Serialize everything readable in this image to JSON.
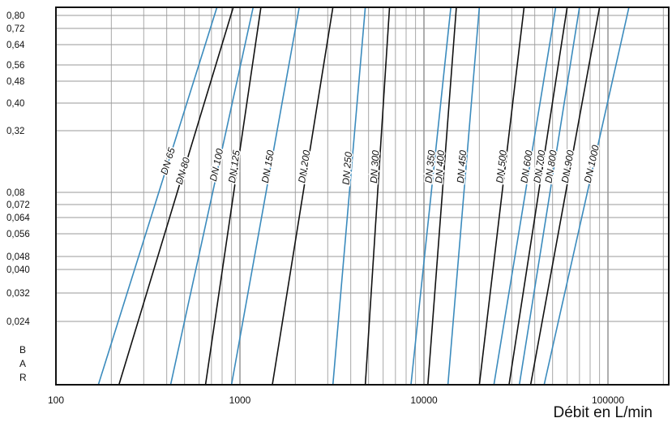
{
  "chart_data": {
    "type": "line",
    "x_scale": "log",
    "x_range": [
      100,
      160000
    ],
    "x_tick_labels": [
      "100",
      "1000",
      "10000",
      "100000"
    ],
    "x_tick_values": [
      100,
      1000,
      10000,
      100000
    ],
    "y_tick_labels": [
      "0,80",
      "0,72",
      "0,64",
      "0,56",
      "0,48",
      "0,40",
      "0,32",
      "0,08",
      "0,072",
      "0,064",
      "0,056",
      "0,048",
      "0,040",
      "0,032",
      "0,024"
    ],
    "y_label_letters": [
      "B",
      "A",
      "R"
    ],
    "xlabel": "Débit en L/min",
    "grid": true,
    "series": [
      {
        "name": "DN 65",
        "color": "#3b8bbd",
        "flow_at_bottom": 170,
        "flow_at_top": 750
      },
      {
        "name": "DN 80",
        "color": "#111111",
        "flow_at_bottom": 220,
        "flow_at_top": 920
      },
      {
        "name": "DN 100",
        "color": "#3b8bbd",
        "flow_at_bottom": 420,
        "flow_at_top": 1180
      },
      {
        "name": "DN 125",
        "color": "#111111",
        "flow_at_bottom": 650,
        "flow_at_top": 1300
      },
      {
        "name": "DN 150",
        "color": "#3b8bbd",
        "flow_at_bottom": 900,
        "flow_at_top": 2100
      },
      {
        "name": "DN 200",
        "color": "#111111",
        "flow_at_bottom": 1500,
        "flow_at_top": 3200
      },
      {
        "name": "DN 250",
        "color": "#3b8bbd",
        "flow_at_bottom": 3200,
        "flow_at_top": 4800
      },
      {
        "name": "DN 300",
        "color": "#111111",
        "flow_at_bottom": 4800,
        "flow_at_top": 6500
      },
      {
        "name": "DN 350",
        "color": "#3b8bbd",
        "flow_at_bottom": 8500,
        "flow_at_top": 14000
      },
      {
        "name": "DN 400",
        "color": "#111111",
        "flow_at_bottom": 10500,
        "flow_at_top": 15000
      },
      {
        "name": "DN 450",
        "color": "#3b8bbd",
        "flow_at_bottom": 13500,
        "flow_at_top": 20000
      },
      {
        "name": "DN 500",
        "color": "#111111",
        "flow_at_bottom": 20000,
        "flow_at_top": 35000
      },
      {
        "name": "DN 600",
        "color": "#3b8bbd",
        "flow_at_bottom": 24000,
        "flow_at_top": 52000
      },
      {
        "name": "DN 700",
        "color": "#111111",
        "flow_at_bottom": 29000,
        "flow_at_top": 60000
      },
      {
        "name": "DN 800",
        "color": "#3b8bbd",
        "flow_at_bottom": 33000,
        "flow_at_top": 70000
      },
      {
        "name": "DN 900",
        "color": "#111111",
        "flow_at_bottom": 38000,
        "flow_at_top": 90000
      },
      {
        "name": "DN 1000",
        "color": "#3b8bbd",
        "flow_at_bottom": 45000,
        "flow_at_top": 130000
      }
    ]
  }
}
